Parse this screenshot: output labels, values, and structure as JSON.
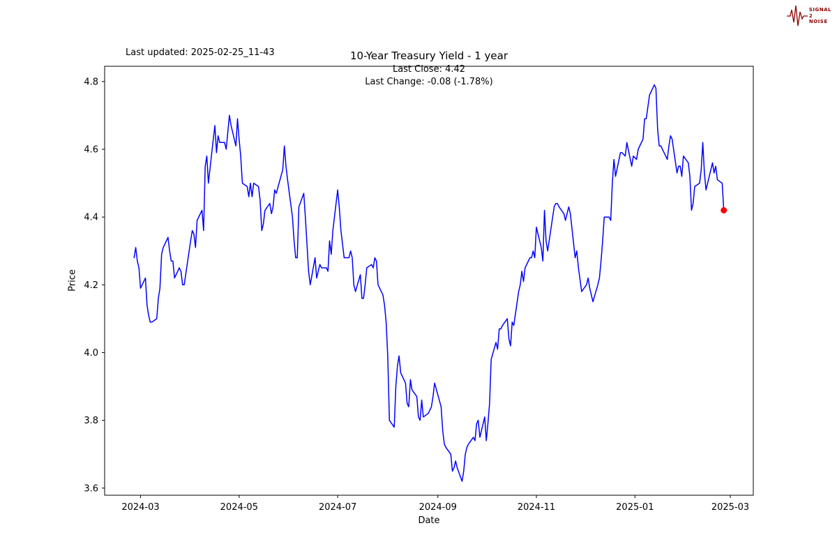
{
  "logo": {
    "text_top": "SIGNAL",
    "text_mid": "2",
    "text_bottom": "NOISE",
    "color": "#8b0000"
  },
  "header": {
    "last_updated": "Last updated: 2025-02-25_11-43"
  },
  "chart_data": {
    "type": "line",
    "title": "10-Year Treasury Yield - 1 year",
    "xlabel": "Date",
    "ylabel": "Price",
    "annotations": [
      "Last Close: 4.42",
      "Last Change: -0.08 (-1.78%)"
    ],
    "last_close": 4.42,
    "last_change": -0.08,
    "last_change_pct": "-1.78%",
    "x_tick_labels": [
      "2024-03",
      "2024-05",
      "2024-07",
      "2024-09",
      "2024-11",
      "2025-01",
      "2025-03"
    ],
    "y_tick_labels": [
      "3.6",
      "3.8",
      "4.0",
      "4.2",
      "4.4",
      "4.6",
      "4.8"
    ],
    "ylim": [
      3.579,
      4.845
    ],
    "grid": false,
    "legend": "none",
    "line_color": "#0000ff",
    "last_point_color": "#ff0000",
    "series": [
      {
        "name": "10-Year Treasury Yield",
        "points": [
          [
            "2024-02-26",
            4.28
          ],
          [
            "2024-02-27",
            4.31
          ],
          [
            "2024-02-28",
            4.27
          ],
          [
            "2024-02-29",
            4.25
          ],
          [
            "2024-03-01",
            4.19
          ],
          [
            "2024-03-04",
            4.22
          ],
          [
            "2024-03-05",
            4.14
          ],
          [
            "2024-03-06",
            4.11
          ],
          [
            "2024-03-07",
            4.09
          ],
          [
            "2024-03-08",
            4.09
          ],
          [
            "2024-03-11",
            4.1
          ],
          [
            "2024-03-12",
            4.16
          ],
          [
            "2024-03-13",
            4.19
          ],
          [
            "2024-03-14",
            4.29
          ],
          [
            "2024-03-15",
            4.31
          ],
          [
            "2024-03-18",
            4.34
          ],
          [
            "2024-03-19",
            4.3
          ],
          [
            "2024-03-20",
            4.27
          ],
          [
            "2024-03-21",
            4.27
          ],
          [
            "2024-03-22",
            4.22
          ],
          [
            "2024-03-25",
            4.25
          ],
          [
            "2024-03-26",
            4.24
          ],
          [
            "2024-03-27",
            4.2
          ],
          [
            "2024-03-28",
            4.2
          ],
          [
            "2024-04-01",
            4.33
          ],
          [
            "2024-04-02",
            4.36
          ],
          [
            "2024-04-03",
            4.35
          ],
          [
            "2024-04-04",
            4.31
          ],
          [
            "2024-04-05",
            4.39
          ],
          [
            "2024-04-08",
            4.42
          ],
          [
            "2024-04-09",
            4.36
          ],
          [
            "2024-04-10",
            4.55
          ],
          [
            "2024-04-11",
            4.58
          ],
          [
            "2024-04-12",
            4.5
          ],
          [
            "2024-04-15",
            4.63
          ],
          [
            "2024-04-16",
            4.67
          ],
          [
            "2024-04-17",
            4.59
          ],
          [
            "2024-04-18",
            4.64
          ],
          [
            "2024-04-19",
            4.62
          ],
          [
            "2024-04-22",
            4.62
          ],
          [
            "2024-04-23",
            4.6
          ],
          [
            "2024-04-24",
            4.65
          ],
          [
            "2024-04-25",
            4.7
          ],
          [
            "2024-04-26",
            4.67
          ],
          [
            "2024-04-29",
            4.61
          ],
          [
            "2024-04-30",
            4.69
          ],
          [
            "2024-05-01",
            4.63
          ],
          [
            "2024-05-02",
            4.58
          ],
          [
            "2024-05-03",
            4.5
          ],
          [
            "2024-05-06",
            4.49
          ],
          [
            "2024-05-07",
            4.46
          ],
          [
            "2024-05-08",
            4.5
          ],
          [
            "2024-05-09",
            4.46
          ],
          [
            "2024-05-10",
            4.5
          ],
          [
            "2024-05-13",
            4.49
          ],
          [
            "2024-05-14",
            4.45
          ],
          [
            "2024-05-15",
            4.36
          ],
          [
            "2024-05-16",
            4.38
          ],
          [
            "2024-05-17",
            4.42
          ],
          [
            "2024-05-20",
            4.44
          ],
          [
            "2024-05-21",
            4.41
          ],
          [
            "2024-05-22",
            4.43
          ],
          [
            "2024-05-23",
            4.48
          ],
          [
            "2024-05-24",
            4.47
          ],
          [
            "2024-05-28",
            4.54
          ],
          [
            "2024-05-29",
            4.61
          ],
          [
            "2024-05-30",
            4.55
          ],
          [
            "2024-05-31",
            4.51
          ],
          [
            "2024-06-03",
            4.4
          ],
          [
            "2024-06-04",
            4.33
          ],
          [
            "2024-06-05",
            4.28
          ],
          [
            "2024-06-06",
            4.28
          ],
          [
            "2024-06-07",
            4.43
          ],
          [
            "2024-06-10",
            4.47
          ],
          [
            "2024-06-11",
            4.4
          ],
          [
            "2024-06-12",
            4.32
          ],
          [
            "2024-06-13",
            4.24
          ],
          [
            "2024-06-14",
            4.2
          ],
          [
            "2024-06-17",
            4.28
          ],
          [
            "2024-06-18",
            4.22
          ],
          [
            "2024-06-20",
            4.26
          ],
          [
            "2024-06-21",
            4.25
          ],
          [
            "2024-06-24",
            4.25
          ],
          [
            "2024-06-25",
            4.24
          ],
          [
            "2024-06-26",
            4.33
          ],
          [
            "2024-06-27",
            4.29
          ],
          [
            "2024-06-28",
            4.36
          ],
          [
            "2024-07-01",
            4.48
          ],
          [
            "2024-07-02",
            4.43
          ],
          [
            "2024-07-03",
            4.36
          ],
          [
            "2024-07-05",
            4.28
          ],
          [
            "2024-07-08",
            4.28
          ],
          [
            "2024-07-09",
            4.3
          ],
          [
            "2024-07-10",
            4.28
          ],
          [
            "2024-07-11",
            4.2
          ],
          [
            "2024-07-12",
            4.18
          ],
          [
            "2024-07-15",
            4.23
          ],
          [
            "2024-07-16",
            4.16
          ],
          [
            "2024-07-17",
            4.16
          ],
          [
            "2024-07-18",
            4.2
          ],
          [
            "2024-07-19",
            4.25
          ],
          [
            "2024-07-22",
            4.26
          ],
          [
            "2024-07-23",
            4.25
          ],
          [
            "2024-07-24",
            4.28
          ],
          [
            "2024-07-25",
            4.27
          ],
          [
            "2024-07-26",
            4.2
          ],
          [
            "2024-07-29",
            4.17
          ],
          [
            "2024-07-30",
            4.14
          ],
          [
            "2024-07-31",
            4.09
          ],
          [
            "2024-08-01",
            3.99
          ],
          [
            "2024-08-02",
            3.8
          ],
          [
            "2024-08-05",
            3.78
          ],
          [
            "2024-08-06",
            3.9
          ],
          [
            "2024-08-07",
            3.96
          ],
          [
            "2024-08-08",
            3.99
          ],
          [
            "2024-08-09",
            3.94
          ],
          [
            "2024-08-12",
            3.91
          ],
          [
            "2024-08-13",
            3.85
          ],
          [
            "2024-08-14",
            3.84
          ],
          [
            "2024-08-15",
            3.92
          ],
          [
            "2024-08-16",
            3.89
          ],
          [
            "2024-08-19",
            3.87
          ],
          [
            "2024-08-20",
            3.81
          ],
          [
            "2024-08-21",
            3.8
          ],
          [
            "2024-08-22",
            3.86
          ],
          [
            "2024-08-23",
            3.81
          ],
          [
            "2024-08-26",
            3.82
          ],
          [
            "2024-08-27",
            3.83
          ],
          [
            "2024-08-28",
            3.84
          ],
          [
            "2024-08-29",
            3.87
          ],
          [
            "2024-08-30",
            3.91
          ],
          [
            "2024-09-03",
            3.84
          ],
          [
            "2024-09-04",
            3.77
          ],
          [
            "2024-09-05",
            3.73
          ],
          [
            "2024-09-06",
            3.72
          ],
          [
            "2024-09-09",
            3.7
          ],
          [
            "2024-09-10",
            3.65
          ],
          [
            "2024-09-11",
            3.66
          ],
          [
            "2024-09-12",
            3.68
          ],
          [
            "2024-09-13",
            3.66
          ],
          [
            "2024-09-16",
            3.62
          ],
          [
            "2024-09-17",
            3.65
          ],
          [
            "2024-09-18",
            3.7
          ],
          [
            "2024-09-19",
            3.72
          ],
          [
            "2024-09-20",
            3.73
          ],
          [
            "2024-09-23",
            3.75
          ],
          [
            "2024-09-24",
            3.74
          ],
          [
            "2024-09-25",
            3.79
          ],
          [
            "2024-09-26",
            3.8
          ],
          [
            "2024-09-27",
            3.75
          ],
          [
            "2024-09-30",
            3.81
          ],
          [
            "2024-10-01",
            3.74
          ],
          [
            "2024-10-02",
            3.79
          ],
          [
            "2024-10-03",
            3.85
          ],
          [
            "2024-10-04",
            3.98
          ],
          [
            "2024-10-07",
            4.03
          ],
          [
            "2024-10-08",
            4.01
          ],
          [
            "2024-10-09",
            4.07
          ],
          [
            "2024-10-10",
            4.07
          ],
          [
            "2024-10-11",
            4.08
          ],
          [
            "2024-10-14",
            4.1
          ],
          [
            "2024-10-15",
            4.04
          ],
          [
            "2024-10-16",
            4.02
          ],
          [
            "2024-10-17",
            4.09
          ],
          [
            "2024-10-18",
            4.08
          ],
          [
            "2024-10-21",
            4.18
          ],
          [
            "2024-10-22",
            4.2
          ],
          [
            "2024-10-23",
            4.24
          ],
          [
            "2024-10-24",
            4.21
          ],
          [
            "2024-10-25",
            4.25
          ],
          [
            "2024-10-28",
            4.28
          ],
          [
            "2024-10-29",
            4.28
          ],
          [
            "2024-10-30",
            4.3
          ],
          [
            "2024-10-31",
            4.28
          ],
          [
            "2024-11-01",
            4.37
          ],
          [
            "2024-11-04",
            4.31
          ],
          [
            "2024-11-05",
            4.27
          ],
          [
            "2024-11-06",
            4.42
          ],
          [
            "2024-11-07",
            4.33
          ],
          [
            "2024-11-08",
            4.3
          ],
          [
            "2024-11-12",
            4.43
          ],
          [
            "2024-11-13",
            4.44
          ],
          [
            "2024-11-14",
            4.44
          ],
          [
            "2024-11-15",
            4.43
          ],
          [
            "2024-11-18",
            4.41
          ],
          [
            "2024-11-19",
            4.39
          ],
          [
            "2024-11-20",
            4.41
          ],
          [
            "2024-11-21",
            4.43
          ],
          [
            "2024-11-22",
            4.41
          ],
          [
            "2024-11-25",
            4.28
          ],
          [
            "2024-11-26",
            4.3
          ],
          [
            "2024-11-27",
            4.25
          ],
          [
            "2024-11-29",
            4.18
          ],
          [
            "2024-12-02",
            4.2
          ],
          [
            "2024-12-03",
            4.22
          ],
          [
            "2024-12-04",
            4.19
          ],
          [
            "2024-12-05",
            4.17
          ],
          [
            "2024-12-06",
            4.15
          ],
          [
            "2024-12-09",
            4.2
          ],
          [
            "2024-12-10",
            4.22
          ],
          [
            "2024-12-11",
            4.27
          ],
          [
            "2024-12-12",
            4.33
          ],
          [
            "2024-12-13",
            4.4
          ],
          [
            "2024-12-16",
            4.4
          ],
          [
            "2024-12-17",
            4.39
          ],
          [
            "2024-12-18",
            4.5
          ],
          [
            "2024-12-19",
            4.57
          ],
          [
            "2024-12-20",
            4.52
          ],
          [
            "2024-12-23",
            4.59
          ],
          [
            "2024-12-24",
            4.59
          ],
          [
            "2024-12-26",
            4.58
          ],
          [
            "2024-12-27",
            4.62
          ],
          [
            "2024-12-30",
            4.55
          ],
          [
            "2024-12-31",
            4.58
          ],
          [
            "2025-01-02",
            4.57
          ],
          [
            "2025-01-03",
            4.6
          ],
          [
            "2025-01-06",
            4.63
          ],
          [
            "2025-01-07",
            4.69
          ],
          [
            "2025-01-08",
            4.69
          ],
          [
            "2025-01-10",
            4.76
          ],
          [
            "2025-01-13",
            4.79
          ],
          [
            "2025-01-14",
            4.78
          ],
          [
            "2025-01-15",
            4.66
          ],
          [
            "2025-01-16",
            4.61
          ],
          [
            "2025-01-17",
            4.61
          ],
          [
            "2025-01-21",
            4.57
          ],
          [
            "2025-01-22",
            4.61
          ],
          [
            "2025-01-23",
            4.64
          ],
          [
            "2025-01-24",
            4.63
          ],
          [
            "2025-01-27",
            4.53
          ],
          [
            "2025-01-28",
            4.55
          ],
          [
            "2025-01-29",
            4.55
          ],
          [
            "2025-01-30",
            4.52
          ],
          [
            "2025-01-31",
            4.58
          ],
          [
            "2025-02-03",
            4.56
          ],
          [
            "2025-02-04",
            4.52
          ],
          [
            "2025-02-05",
            4.42
          ],
          [
            "2025-02-06",
            4.44
          ],
          [
            "2025-02-07",
            4.49
          ],
          [
            "2025-02-10",
            4.5
          ],
          [
            "2025-02-11",
            4.54
          ],
          [
            "2025-02-12",
            4.62
          ],
          [
            "2025-02-13",
            4.53
          ],
          [
            "2025-02-14",
            4.48
          ],
          [
            "2025-02-18",
            4.56
          ],
          [
            "2025-02-19",
            4.53
          ],
          [
            "2025-02-20",
            4.55
          ],
          [
            "2025-02-21",
            4.51
          ],
          [
            "2025-02-24",
            4.5
          ],
          [
            "2025-02-25",
            4.42
          ]
        ]
      }
    ]
  }
}
